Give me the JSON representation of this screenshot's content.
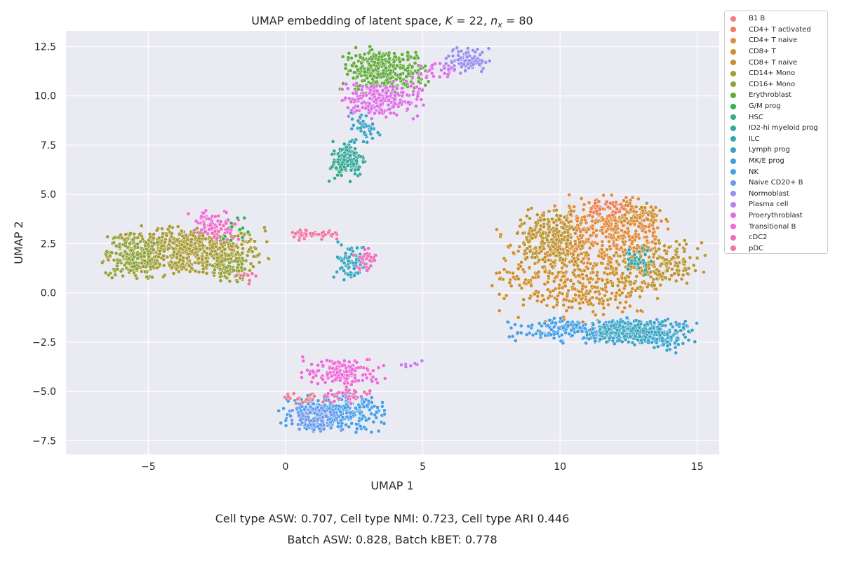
{
  "title_parts": {
    "prefix": "UMAP embedding of latent space, ",
    "k_symbol": "K",
    "k_eq": " = 22, ",
    "n_symbol": "n",
    "n_sub": "x",
    "n_eq": " = 80"
  },
  "metrics": {
    "line1": "Cell type ASW: 0.707, Cell type NMI: 0.723, Cell type ARI 0.446",
    "line2": "Batch ASW: 0.828, Batch kBET: 0.778"
  },
  "chart_data": {
    "type": "scatter",
    "xlabel": "UMAP 1",
    "ylabel": "UMAP 2",
    "xlim": [
      -8.0,
      15.8
    ],
    "ylim": [
      -8.2,
      13.3
    ],
    "xticks": [
      -5,
      0,
      5,
      10,
      15
    ],
    "yticks": [
      -7.5,
      -5.0,
      -2.5,
      0.0,
      2.5,
      5.0,
      7.5,
      10.0,
      12.5
    ],
    "xtick_labels": [
      "−5",
      "0",
      "5",
      "10",
      "15"
    ],
    "ytick_labels": [
      "−7.5",
      "−5.0",
      "−2.5",
      "0.0",
      "2.5",
      "5.0",
      "7.5",
      "10.0",
      "12.5"
    ],
    "grid": true,
    "legend_position": "outside-right",
    "series": [
      {
        "name": "B1 B",
        "color": "#f47a87"
      },
      {
        "name": "CD4+ T activated",
        "color": "#f07a5b"
      },
      {
        "name": "CD4+ T naive",
        "color": "#e28b3a"
      },
      {
        "name": "CD8+ T",
        "color": "#cf8f2f"
      },
      {
        "name": "CD8+ T naive",
        "color": "#bc9431"
      },
      {
        "name": "CD14+ Mono",
        "color": "#a89b35"
      },
      {
        "name": "CD16+ Mono",
        "color": "#8ea43a"
      },
      {
        "name": "Erythroblast",
        "color": "#62ab3c"
      },
      {
        "name": "G/M prog",
        "color": "#32b152"
      },
      {
        "name": "HSC",
        "color": "#33ab84"
      },
      {
        "name": "ID2-hi myeloid prog",
        "color": "#35a79b"
      },
      {
        "name": "ILC",
        "color": "#36a6ac"
      },
      {
        "name": "Lymph prog",
        "color": "#38a5bf"
      },
      {
        "name": "MK/E prog",
        "color": "#3aa3d1"
      },
      {
        "name": "NK",
        "color": "#46a0e8"
      },
      {
        "name": "Naive CD20+ B",
        "color": "#6d98ed"
      },
      {
        "name": "Normoblast",
        "color": "#9a8def"
      },
      {
        "name": "Plasma cell",
        "color": "#c17cef"
      },
      {
        "name": "Proerythroblast",
        "color": "#dd6ee6"
      },
      {
        "name": "Transitional B",
        "color": "#ee6ad7"
      },
      {
        "name": "cDC2",
        "color": "#f06bbb"
      },
      {
        "name": "pDC",
        "color": "#f1759f"
      }
    ],
    "clusters": [
      {
        "series": "CD14+ Mono",
        "cx": -3.6,
        "cy": 2.1,
        "sx": 1.4,
        "sy": 0.6,
        "n": 650
      },
      {
        "series": "CD16+ Mono",
        "cx": -5.6,
        "cy": 1.9,
        "sx": 0.5,
        "sy": 0.6,
        "n": 140
      },
      {
        "series": "CD16+ Mono",
        "cx": -2.0,
        "cy": 1.2,
        "sx": 0.3,
        "sy": 0.4,
        "n": 70
      },
      {
        "series": "Transitional B",
        "cx": -2.6,
        "cy": 3.5,
        "sx": 0.45,
        "sy": 0.35,
        "n": 60
      },
      {
        "series": "cDC2",
        "cx": -2.3,
        "cy": 3.1,
        "sx": 0.35,
        "sy": 0.3,
        "n": 25
      },
      {
        "series": "G/M prog",
        "cx": -1.8,
        "cy": 3.3,
        "sx": 0.3,
        "sy": 0.3,
        "n": 12
      },
      {
        "series": "pDC",
        "cx": -1.4,
        "cy": 0.8,
        "sx": 0.2,
        "sy": 0.2,
        "n": 10
      },
      {
        "series": "Erythroblast",
        "cx": 3.6,
        "cy": 11.3,
        "sx": 0.75,
        "sy": 0.55,
        "n": 330
      },
      {
        "series": "Proerythroblast",
        "cx": 3.4,
        "cy": 9.8,
        "sx": 0.75,
        "sy": 0.45,
        "n": 230
      },
      {
        "series": "Proerythroblast",
        "cx": 5.4,
        "cy": 11.2,
        "sx": 0.4,
        "sy": 0.25,
        "n": 30
      },
      {
        "series": "Normoblast",
        "cx": 6.6,
        "cy": 11.8,
        "sx": 0.4,
        "sy": 0.3,
        "n": 90
      },
      {
        "series": "ID2-hi myeloid prog",
        "cx": 2.3,
        "cy": 6.8,
        "sx": 0.3,
        "sy": 0.45,
        "n": 120
      },
      {
        "series": "HSC",
        "cx": 2.0,
        "cy": 6.3,
        "sx": 0.25,
        "sy": 0.3,
        "n": 20
      },
      {
        "series": "Lymph prog",
        "cx": 2.9,
        "cy": 8.3,
        "sx": 0.3,
        "sy": 0.4,
        "n": 40
      },
      {
        "series": "pDC",
        "cx": 1.0,
        "cy": 3.0,
        "sx": 0.5,
        "sy": 0.15,
        "n": 50
      },
      {
        "series": "Lymph prog",
        "cx": 2.4,
        "cy": 1.6,
        "sx": 0.35,
        "sy": 0.45,
        "n": 80
      },
      {
        "series": "cDC2",
        "cx": 2.9,
        "cy": 1.7,
        "sx": 0.2,
        "sy": 0.3,
        "n": 30
      },
      {
        "series": "CD8+ T",
        "cx": 10.6,
        "cy": 0.9,
        "sx": 1.4,
        "sy": 1.1,
        "n": 500
      },
      {
        "series": "CD4+ T naive",
        "cx": 11.8,
        "cy": 3.3,
        "sx": 1.0,
        "sy": 0.8,
        "n": 350
      },
      {
        "series": "CD8+ T naive",
        "cx": 9.6,
        "cy": 2.8,
        "sx": 0.6,
        "sy": 0.7,
        "n": 220
      },
      {
        "series": "CD8+ T naive",
        "cx": 13.6,
        "cy": 1.4,
        "sx": 0.8,
        "sy": 0.6,
        "n": 200
      },
      {
        "series": "CD8+ T",
        "cx": 12.8,
        "cy": 4.0,
        "sx": 0.5,
        "sy": 0.3,
        "n": 60
      },
      {
        "series": "NK",
        "cx": 11.5,
        "cy": -1.9,
        "sx": 1.6,
        "sy": 0.3,
        "n": 300
      },
      {
        "series": "Lymph prog",
        "cx": 12.8,
        "cy": -2.0,
        "sx": 1.0,
        "sy": 0.3,
        "n": 250
      },
      {
        "series": "MK/E prog",
        "cx": 13.9,
        "cy": -2.5,
        "sx": 0.3,
        "sy": 0.25,
        "n": 40
      },
      {
        "series": "ILC",
        "cx": 12.8,
        "cy": 1.6,
        "sx": 0.25,
        "sy": 0.35,
        "n": 30
      },
      {
        "series": "CD4+ T activated",
        "cx": 11.8,
        "cy": 4.3,
        "sx": 0.5,
        "sy": 0.25,
        "n": 30
      },
      {
        "series": "NK",
        "cx": 1.7,
        "cy": -6.1,
        "sx": 0.9,
        "sy": 0.45,
        "n": 330
      },
      {
        "series": "Naive CD20+ B",
        "cx": 1.1,
        "cy": -6.3,
        "sx": 0.5,
        "sy": 0.35,
        "n": 90
      },
      {
        "series": "Transitional B",
        "cx": 2.1,
        "cy": -4.0,
        "sx": 0.7,
        "sy": 0.35,
        "n": 150
      },
      {
        "series": "cDC2",
        "cx": 2.3,
        "cy": -5.2,
        "sx": 0.5,
        "sy": 0.2,
        "n": 40
      },
      {
        "series": "B1 B",
        "cx": 0.7,
        "cy": -5.4,
        "sx": 0.4,
        "sy": 0.15,
        "n": 20
      },
      {
        "series": "Plasma cell",
        "cx": 4.6,
        "cy": -3.7,
        "sx": 0.2,
        "sy": 0.12,
        "n": 8
      }
    ]
  }
}
